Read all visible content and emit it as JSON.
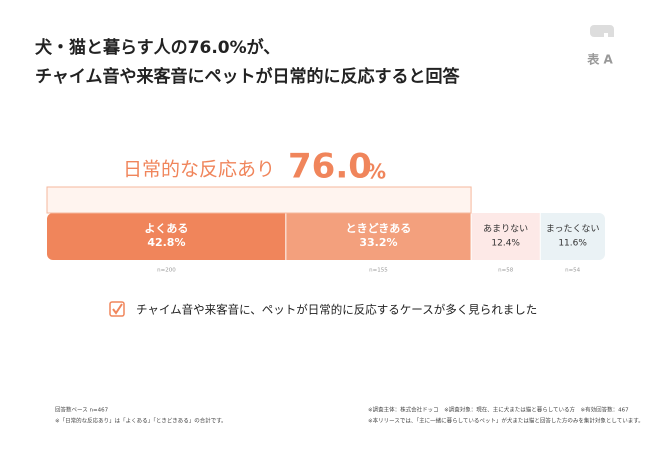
{
  "header": {
    "title_lines": [
      "犬・猫と暮らす人の76.0%が、",
      "チャイム音や来客音にペットが日常的に反応すると回答"
    ],
    "tag": "表 A"
  },
  "chart_data": {
    "type": "stacked-bar-horizontal",
    "highlight": {
      "text": "日常的な反応あり",
      "value": 76.0,
      "value_label": "76.0",
      "unit": "%"
    },
    "xlim": [
      0,
      100
    ],
    "series": [
      {
        "name": "よくある",
        "color": "#f0855b",
        "values": [
          42.8
        ],
        "value_labels": [
          "42.8%"
        ],
        "n_label": "n=200"
      },
      {
        "name": "ときどきある",
        "color": "#f3a07d",
        "values": [
          33.2
        ],
        "value_labels": [
          "33.2%"
        ],
        "n_label": "n=155"
      },
      {
        "name": "あまりない",
        "color": "#fde9e7",
        "values": [
          12.4
        ],
        "value_labels": [
          "12.4%"
        ],
        "n_label": "n=58"
      },
      {
        "name": "まったくない",
        "color": "#eaf2f5",
        "values": [
          11.6
        ],
        "value_labels": [
          "11.6%"
        ],
        "n_label": "n=54"
      }
    ]
  },
  "finding": "チャイム音や来客音に、ペットが日常的に反応するケースが多く見られました",
  "footnotes_left": [
    "回答数ベース n=467",
    "※「日常的な反応あり」は「よくある」「ときどきある」の合計です。"
  ],
  "footnotes_right": [
    "※調査主体：株式会社ドッコ　※調査対象：現在、主に犬または猫と暮らしている方　※有効回答数：467",
    "※本リリースでは、「主に一緒に暮らしているペット」が犬または猫と回答した方のみを集計対象としています。"
  ]
}
